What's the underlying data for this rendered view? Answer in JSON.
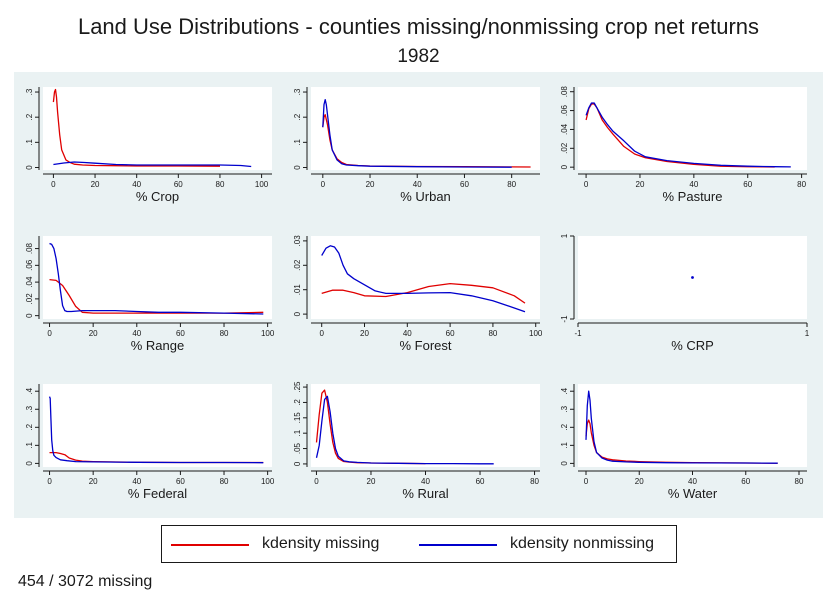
{
  "title": "Land Use Distributions - counties missing/nonmissing crop net returns",
  "subtitle": "1982",
  "colors": {
    "missing": "#e00000",
    "nonmissing": "#0000cc",
    "panel_bg": "#eaf2f3"
  },
  "legend": {
    "missing_label": "kdensity missing",
    "nonmissing_label": "kdensity nonmissing",
    "position": "bottom"
  },
  "footnote": "454 / 3072 missing",
  "chart_data": [
    {
      "type": "line",
      "xlabel": "% Crop",
      "xlim": [
        -5,
        105
      ],
      "ylim": [
        -0.01,
        0.32
      ],
      "xticks": [
        "0",
        "20",
        "40",
        "60",
        "80",
        "100"
      ],
      "xtick_values": [
        0,
        20,
        40,
        60,
        80,
        100
      ],
      "yticks": [
        "0",
        ".1",
        ".2",
        ".3"
      ],
      "ytick_values": [
        0,
        0.1,
        0.2,
        0.3
      ],
      "series": [
        {
          "name": "kdensity missing",
          "x": [
            0,
            0.5,
            1,
            1.5,
            2,
            3,
            4,
            6,
            8,
            10,
            14,
            20,
            30,
            40,
            60,
            80
          ],
          "y": [
            0.26,
            0.3,
            0.31,
            0.28,
            0.22,
            0.13,
            0.07,
            0.03,
            0.02,
            0.013,
            0.01,
            0.008,
            0.007,
            0.006,
            0.006,
            0.005
          ]
        },
        {
          "name": "kdensity nonmissing",
          "x": [
            0,
            5,
            10,
            15,
            20,
            30,
            40,
            60,
            80,
            90,
            95
          ],
          "y": [
            0.012,
            0.018,
            0.022,
            0.02,
            0.017,
            0.012,
            0.01,
            0.01,
            0.01,
            0.008,
            0.004
          ]
        }
      ]
    },
    {
      "type": "line",
      "xlabel": "% Urban",
      "xlim": [
        -5,
        92
      ],
      "ylim": [
        -0.01,
        0.32
      ],
      "xticks": [
        "0",
        "20",
        "40",
        "60",
        "80"
      ],
      "xtick_values": [
        0,
        20,
        40,
        60,
        80
      ],
      "yticks": [
        "0",
        ".1",
        ".2",
        ".3"
      ],
      "ytick_values": [
        0,
        0.1,
        0.2,
        0.3
      ],
      "series": [
        {
          "name": "kdensity missing",
          "x": [
            0,
            0.5,
            1,
            2,
            3,
            4,
            6,
            8,
            10,
            15,
            20,
            40,
            60,
            88
          ],
          "y": [
            0.16,
            0.2,
            0.21,
            0.17,
            0.11,
            0.07,
            0.035,
            0.02,
            0.012,
            0.008,
            0.006,
            0.004,
            0.003,
            0.002
          ]
        },
        {
          "name": "kdensity nonmissing",
          "x": [
            0,
            0.5,
            1,
            1.5,
            2,
            3,
            4,
            6,
            8,
            10,
            15,
            20,
            40,
            60,
            80
          ],
          "y": [
            0.16,
            0.25,
            0.27,
            0.25,
            0.21,
            0.13,
            0.07,
            0.03,
            0.015,
            0.01,
            0.007,
            0.005,
            0.003,
            0.002,
            0.001
          ]
        }
      ]
    },
    {
      "type": "line",
      "xlabel": "% Pasture",
      "xlim": [
        -3,
        82
      ],
      "ylim": [
        -0.003,
        0.085
      ],
      "xticks": [
        "0",
        "20",
        "40",
        "60",
        "80"
      ],
      "xtick_values": [
        0,
        20,
        40,
        60,
        80
      ],
      "yticks": [
        "0",
        ".02",
        ".04",
        ".06",
        ".08"
      ],
      "ytick_values": [
        0,
        0.02,
        0.04,
        0.06,
        0.08
      ],
      "series": [
        {
          "name": "kdensity missing",
          "x": [
            0,
            1,
            2,
            3,
            4,
            6,
            8,
            10,
            14,
            18,
            22,
            30,
            40,
            50,
            60,
            70
          ],
          "y": [
            0.05,
            0.062,
            0.067,
            0.067,
            0.063,
            0.05,
            0.042,
            0.035,
            0.022,
            0.014,
            0.01,
            0.006,
            0.003,
            0.001,
            0.0005,
            0.0002
          ]
        },
        {
          "name": "kdensity nonmissing",
          "x": [
            0,
            1,
            2,
            3,
            4,
            6,
            8,
            10,
            14,
            18,
            22,
            30,
            40,
            50,
            60,
            70,
            76
          ],
          "y": [
            0.055,
            0.063,
            0.068,
            0.068,
            0.063,
            0.053,
            0.045,
            0.038,
            0.028,
            0.017,
            0.011,
            0.007,
            0.004,
            0.002,
            0.001,
            0.0005,
            0.0003
          ]
        }
      ]
    },
    {
      "type": "line",
      "xlabel": "% Range",
      "xlim": [
        -3,
        102
      ],
      "ylim": [
        -0.004,
        0.095
      ],
      "xticks": [
        "0",
        "20",
        "40",
        "60",
        "80",
        "100"
      ],
      "xtick_values": [
        0,
        20,
        40,
        60,
        80,
        100
      ],
      "yticks": [
        "0",
        ".02",
        ".04",
        ".06",
        ".08"
      ],
      "ytick_values": [
        0,
        0.02,
        0.04,
        0.06,
        0.08
      ],
      "series": [
        {
          "name": "kdensity missing",
          "x": [
            0,
            3,
            6,
            9,
            12,
            15,
            20,
            40,
            60,
            80,
            98
          ],
          "y": [
            0.043,
            0.042,
            0.036,
            0.024,
            0.011,
            0.004,
            0.003,
            0.003,
            0.003,
            0.003,
            0.004
          ]
        },
        {
          "name": "kdensity nonmissing",
          "x": [
            0,
            1,
            2,
            3,
            4,
            5,
            6,
            7,
            8,
            10,
            15,
            20,
            30,
            40,
            50,
            60,
            80,
            98
          ],
          "y": [
            0.086,
            0.085,
            0.08,
            0.068,
            0.05,
            0.03,
            0.012,
            0.006,
            0.005,
            0.005,
            0.006,
            0.006,
            0.006,
            0.005,
            0.004,
            0.004,
            0.003,
            0.002
          ]
        }
      ]
    },
    {
      "type": "line",
      "xlabel": "% Forest",
      "xlim": [
        -5,
        102
      ],
      "ylim": [
        -0.002,
        0.032
      ],
      "xticks": [
        "0",
        "20",
        "40",
        "60",
        "80",
        "100"
      ],
      "xtick_values": [
        0,
        20,
        40,
        60,
        80,
        100
      ],
      "yticks": [
        "0",
        ".01",
        ".02",
        ".03"
      ],
      "ytick_values": [
        0,
        0.01,
        0.02,
        0.03
      ],
      "series": [
        {
          "name": "kdensity missing",
          "x": [
            0,
            5,
            10,
            15,
            20,
            30,
            40,
            50,
            60,
            70,
            80,
            90,
            95
          ],
          "y": [
            0.0085,
            0.0098,
            0.0098,
            0.0088,
            0.0075,
            0.0072,
            0.0088,
            0.0113,
            0.0125,
            0.0118,
            0.0108,
            0.0075,
            0.0045
          ]
        },
        {
          "name": "kdensity nonmissing",
          "x": [
            0,
            2,
            4,
            6,
            8,
            10,
            12,
            15,
            20,
            25,
            30,
            40,
            50,
            60,
            70,
            80,
            90,
            95
          ],
          "y": [
            0.024,
            0.027,
            0.028,
            0.0275,
            0.025,
            0.02,
            0.0165,
            0.0145,
            0.012,
            0.0095,
            0.0085,
            0.0085,
            0.0087,
            0.0088,
            0.0075,
            0.0055,
            0.0025,
            0.001
          ]
        }
      ]
    },
    {
      "type": "scatter",
      "xlabel": "% CRP",
      "xlim": [
        -1,
        1
      ],
      "ylim": [
        -1,
        1
      ],
      "xticks": [
        "-1",
        "1"
      ],
      "xtick_values": [
        -1,
        1
      ],
      "yticks": [
        "-1",
        "1"
      ],
      "ytick_values": [
        -1,
        1
      ],
      "series": [
        {
          "name": "kdensity nonmissing",
          "x": [
            0
          ],
          "y": [
            0
          ]
        }
      ]
    },
    {
      "type": "line",
      "xlabel": "% Federal",
      "xlim": [
        -3,
        102
      ],
      "ylim": [
        -0.02,
        0.44
      ],
      "xticks": [
        "0",
        "20",
        "40",
        "60",
        "80",
        "100"
      ],
      "xtick_values": [
        0,
        20,
        40,
        60,
        80,
        100
      ],
      "yticks": [
        "0",
        ".1",
        ".2",
        ".3",
        ".4"
      ],
      "ytick_values": [
        0,
        0.1,
        0.2,
        0.3,
        0.4
      ],
      "series": [
        {
          "name": "kdensity missing",
          "x": [
            0,
            3,
            5,
            7,
            9,
            12,
            15,
            20,
            40,
            60,
            80,
            98
          ],
          "y": [
            0.06,
            0.06,
            0.055,
            0.048,
            0.03,
            0.018,
            0.012,
            0.01,
            0.006,
            0.005,
            0.005,
            0.005
          ]
        },
        {
          "name": "kdensity nonmissing",
          "x": [
            0,
            0.3,
            0.6,
            1,
            1.5,
            2,
            3,
            5,
            8,
            12,
            20,
            40,
            60,
            80,
            98
          ],
          "y": [
            0.37,
            0.36,
            0.25,
            0.13,
            0.07,
            0.045,
            0.032,
            0.02,
            0.015,
            0.01,
            0.008,
            0.006,
            0.005,
            0.005,
            0.004
          ]
        }
      ]
    },
    {
      "type": "line",
      "xlabel": "% Rural",
      "xlim": [
        -2,
        82
      ],
      "ylim": [
        -0.01,
        0.26
      ],
      "xticks": [
        "0",
        "20",
        "40",
        "60",
        "80"
      ],
      "xtick_values": [
        0,
        20,
        40,
        60,
        80
      ],
      "yticks": [
        "0",
        ".05",
        ".1",
        ".15",
        ".2",
        ".25"
      ],
      "ytick_values": [
        0,
        0.05,
        0.1,
        0.15,
        0.2,
        0.25
      ],
      "series": [
        {
          "name": "kdensity missing",
          "x": [
            0,
            1,
            2,
            3,
            4,
            5,
            6,
            7,
            8,
            10,
            12,
            15,
            20,
            30,
            40
          ],
          "y": [
            0.07,
            0.16,
            0.23,
            0.24,
            0.2,
            0.13,
            0.07,
            0.035,
            0.018,
            0.008,
            0.006,
            0.004,
            0.003,
            0.002,
            0.001
          ]
        },
        {
          "name": "kdensity nonmissing",
          "x": [
            0,
            1,
            2,
            3,
            4,
            5,
            6,
            7,
            8,
            10,
            12,
            15,
            20,
            30,
            40,
            50,
            60,
            65
          ],
          "y": [
            0.02,
            0.06,
            0.14,
            0.21,
            0.22,
            0.17,
            0.1,
            0.05,
            0.025,
            0.01,
            0.007,
            0.005,
            0.003,
            0.002,
            0.001,
            0.001,
            0.0005,
            0.0003
          ]
        }
      ]
    },
    {
      "type": "line",
      "xlabel": "% Water",
      "xlim": [
        -3,
        83
      ],
      "ylim": [
        -0.02,
        0.44
      ],
      "xticks": [
        "0",
        "20",
        "40",
        "60",
        "80"
      ],
      "xtick_values": [
        0,
        20,
        40,
        60,
        80
      ],
      "yticks": [
        "0",
        ".1",
        ".2",
        ".3",
        ".4"
      ],
      "ytick_values": [
        0,
        0.1,
        0.2,
        0.3,
        0.4
      ],
      "series": [
        {
          "name": "kdensity missing",
          "x": [
            0,
            0.5,
            1,
            1.5,
            2,
            3,
            4,
            6,
            8,
            10,
            15,
            20,
            30,
            40,
            60,
            72
          ],
          "y": [
            0.15,
            0.22,
            0.24,
            0.22,
            0.17,
            0.1,
            0.06,
            0.035,
            0.025,
            0.02,
            0.013,
            0.01,
            0.006,
            0.004,
            0.002,
            0.001
          ]
        },
        {
          "name": "kdensity nonmissing",
          "x": [
            0,
            0.5,
            1,
            1.5,
            2,
            3,
            4,
            6,
            8,
            10,
            15,
            20,
            30,
            40,
            60,
            72
          ],
          "y": [
            0.13,
            0.32,
            0.4,
            0.35,
            0.25,
            0.12,
            0.06,
            0.03,
            0.018,
            0.012,
            0.008,
            0.006,
            0.004,
            0.003,
            0.002,
            0.001
          ]
        }
      ]
    }
  ]
}
